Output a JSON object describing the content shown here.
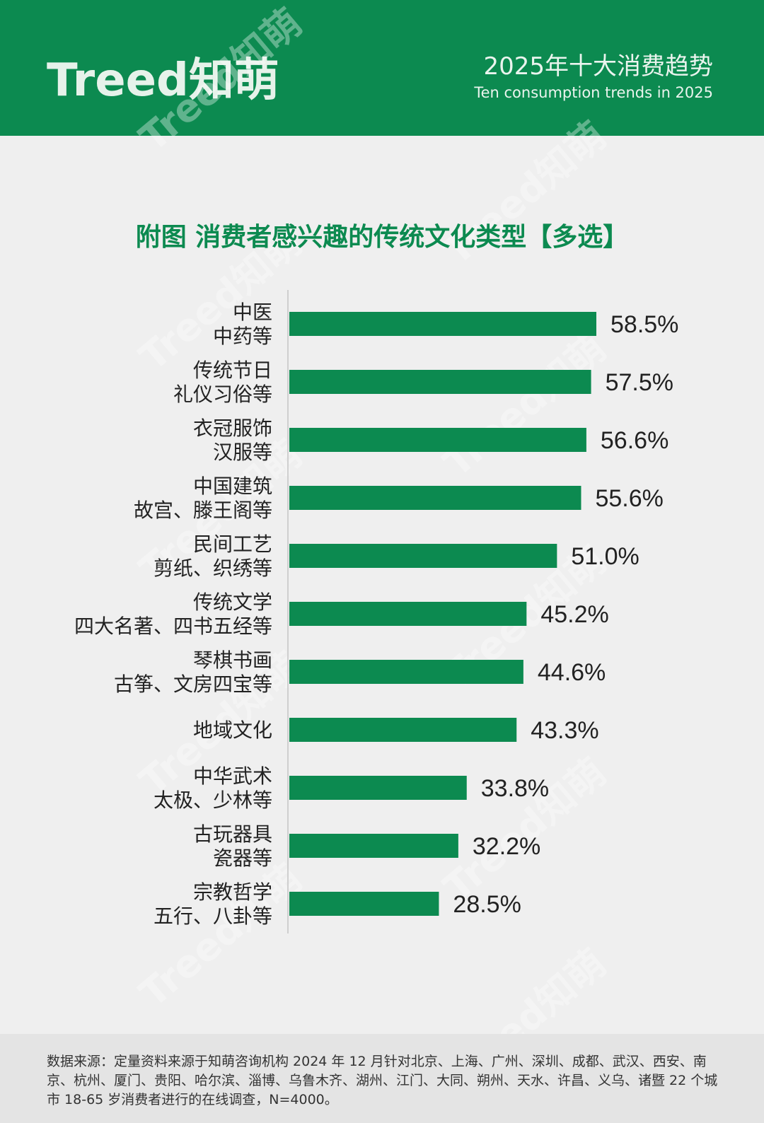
{
  "header": {
    "logo": "Treed知萌",
    "title": "2025年十大消费趋势",
    "subtitle": "Ten consumption trends in 2025"
  },
  "watermark_text": "Treed知萌",
  "chart_data": {
    "type": "bar",
    "orientation": "horizontal",
    "title": "附图  消费者感兴趣的传统文化类型【多选】",
    "categories": [
      [
        "中医",
        "中药等"
      ],
      [
        "传统节日",
        "礼仪习俗等"
      ],
      [
        "衣冠服饰",
        "汉服等"
      ],
      [
        "中国建筑",
        "故宫、滕王阁等"
      ],
      [
        "民间工艺",
        "剪纸、织绣等"
      ],
      [
        "传统文学",
        "四大名著、四书五经等"
      ],
      [
        "琴棋书画",
        "古筝、文房四宝等"
      ],
      [
        "地域文化"
      ],
      [
        "中华武术",
        "太极、少林等"
      ],
      [
        "古玩器具",
        "瓷器等"
      ],
      [
        "宗教哲学",
        "五行、八卦等"
      ]
    ],
    "values": [
      58.5,
      57.5,
      56.6,
      55.6,
      51.0,
      45.2,
      44.6,
      43.3,
      33.8,
      32.2,
      28.5
    ],
    "value_labels": [
      "58.5%",
      "57.5%",
      "56.6%",
      "55.6%",
      "51.0%",
      "45.2%",
      "44.6%",
      "43.3%",
      "33.8%",
      "32.2%",
      "28.5%"
    ],
    "bar_color": "#0c8a50",
    "grid": false
  },
  "footer": {
    "source": "数据来源：定量资料来源于知萌咨询机构 2024 年 12 月针对北京、上海、广州、深圳、成都、武汉、西安、南京、杭州、厦门、贵阳、哈尔滨、淄博、乌鲁木齐、湖州、江门、大同、朔州、天水、许昌、义乌、诸暨 22 个城市 18-65 岁消费者进行的在线调查，N=4000。"
  }
}
